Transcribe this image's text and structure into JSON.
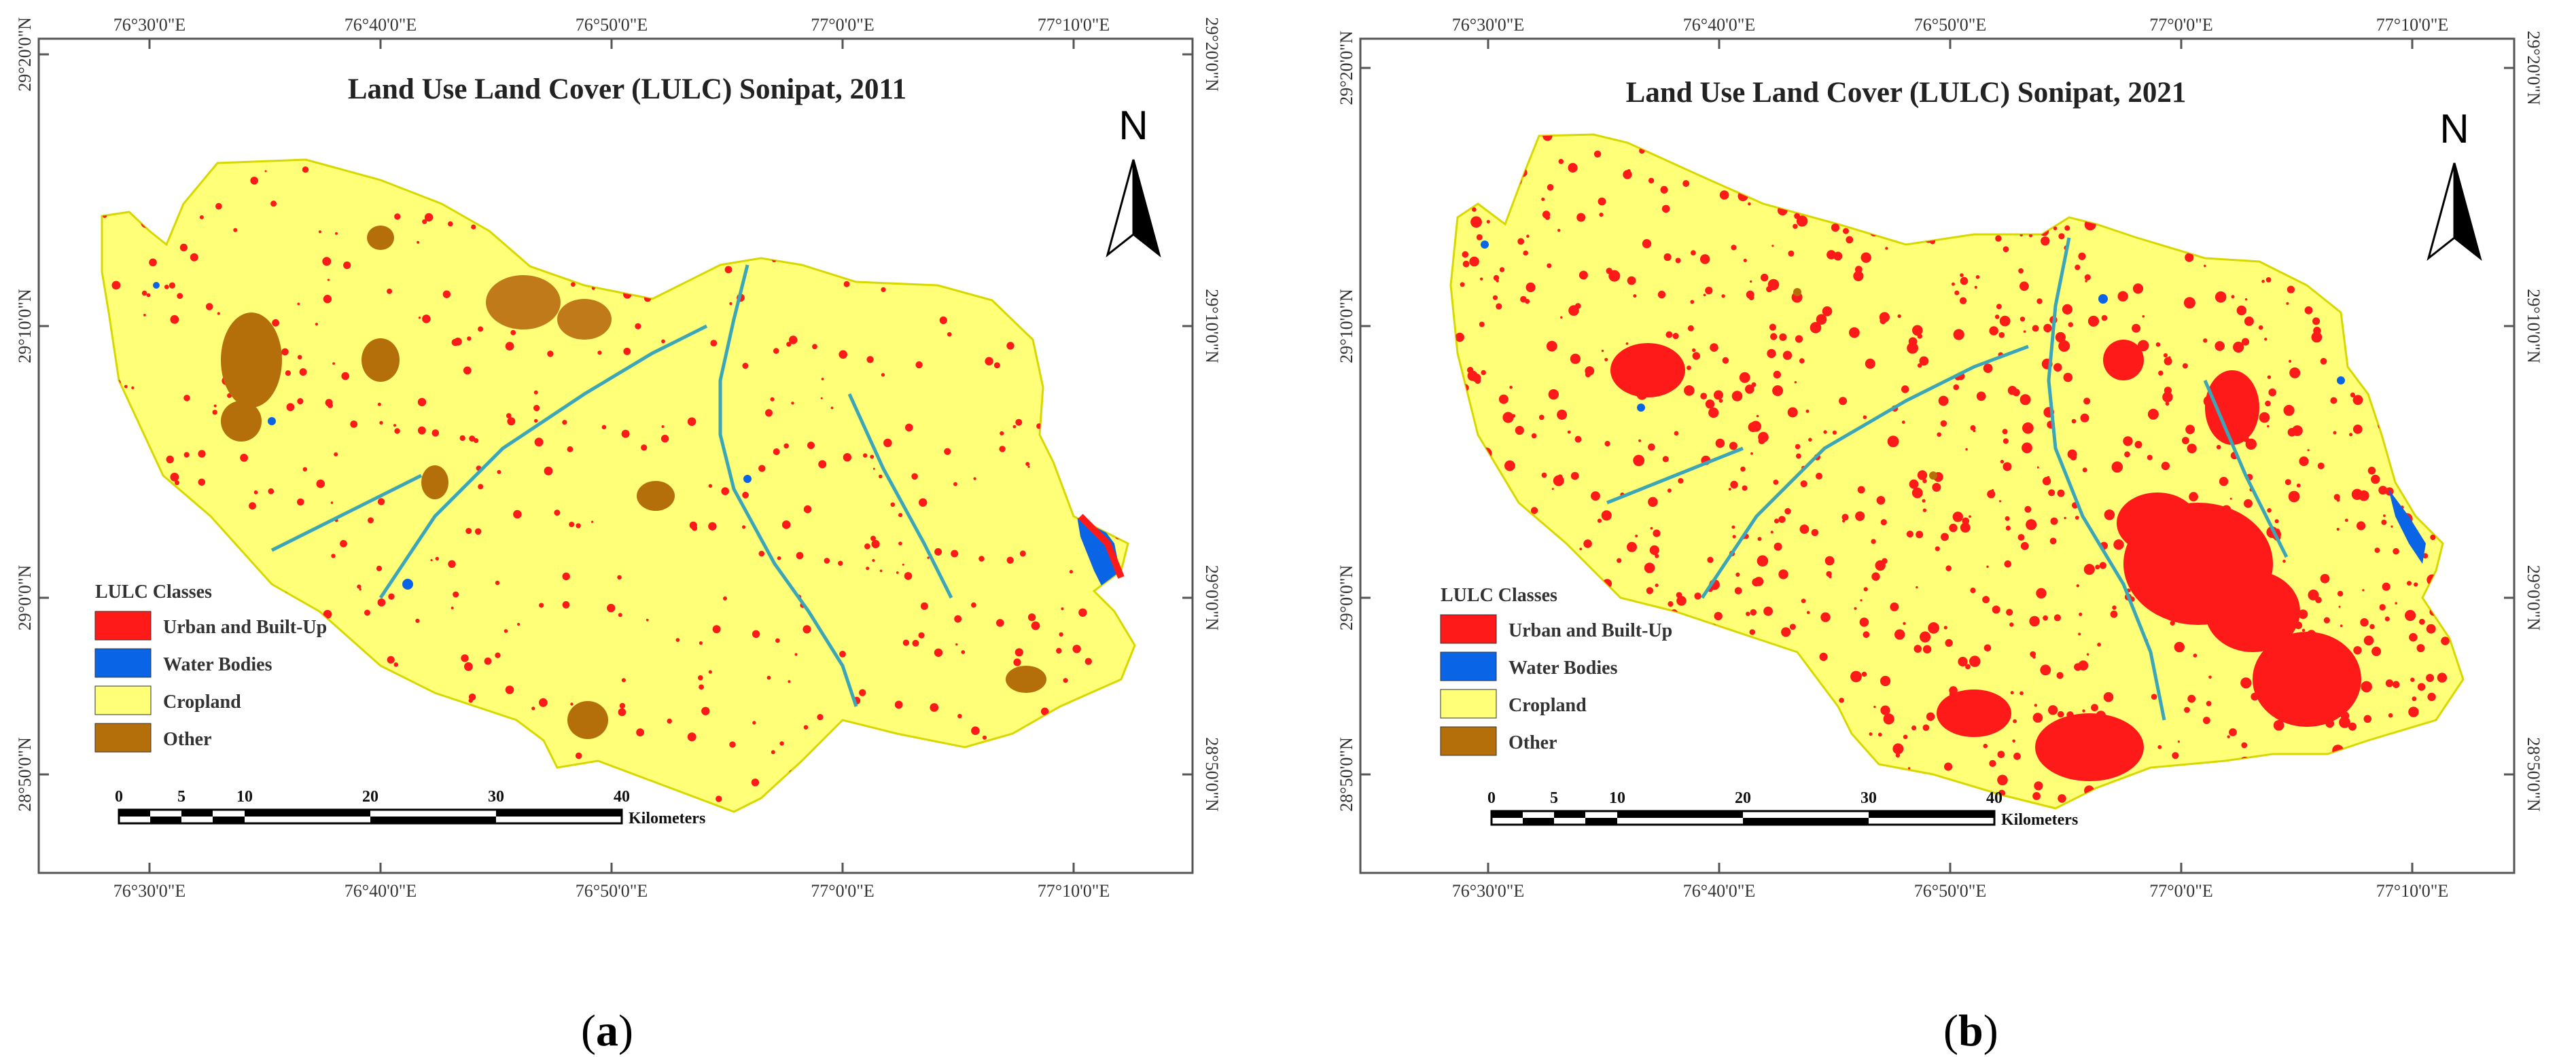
{
  "legend_colors": {
    "urban": "#ff1a1a",
    "water": "#0a64e6",
    "cropland": "#ffff78",
    "other": "#b46e0a",
    "stream": "#3aa6b8",
    "boundary": "#d8d800"
  },
  "panels": [
    {
      "id": "a",
      "title": "Land Use Land Cover (LULC) Sonipat, 2011",
      "caption_letter": "a",
      "top_ticks": [
        "76°30'0\"E",
        "76°40'0\"E",
        "76°50'0\"E",
        "77°0'0\"E",
        "77°10'0\"E"
      ],
      "bottom_ticks": [
        "76°30'0\"E",
        "76°40'0\"E",
        "76°50'0\"E",
        "77°0'0\"E",
        "77°10'0\"E"
      ],
      "left_ticks": [
        "29°20'0\"N",
        "29°10'0\"N",
        "29°0'0\"N",
        "28°50'0\"N"
      ],
      "right_ticks": [
        "29°20'0\"N",
        "29°10'0\"N",
        "29°0'0\"N",
        "28°50'0\"N"
      ],
      "north_label": "N",
      "legend": {
        "title": "LULC Classes",
        "items": [
          {
            "label": "Urban and Built-Up",
            "color": "#ff1a1a"
          },
          {
            "label": "Water Bodies",
            "color": "#0a64e6"
          },
          {
            "label": "Cropland",
            "color": "#ffff78"
          },
          {
            "label": "Other",
            "color": "#b46e0a"
          }
        ]
      },
      "scale_bar": {
        "labels": [
          "0",
          "5",
          "10",
          "20",
          "30",
          "40"
        ],
        "unit": "Kilometers"
      }
    },
    {
      "id": "b",
      "title": "Land Use Land Cover (LULC) Sonipat, 2021",
      "caption_letter": "b",
      "top_ticks": [
        "76°30'0\"E",
        "76°40'0\"E",
        "76°50'0\"E",
        "77°0'0\"E",
        "77°10'0\"E"
      ],
      "bottom_ticks": [
        "76°30'0\"E",
        "76°40'0\"E",
        "76°50'0\"E",
        "77°0'0\"E",
        "77°10'0\"E"
      ],
      "left_ticks": [
        "29°20'0\"N",
        "29°10'0\"N",
        "29°0'0\"N",
        "28°50'0\"N"
      ],
      "right_ticks": [
        "29°20'0\"N",
        "29°10'0\"N",
        "29°0'0\"N",
        "28°50'0\"N"
      ],
      "north_label": "N",
      "legend": {
        "title": "LULC Classes",
        "items": [
          {
            "label": "Urban and Built-Up",
            "color": "#ff1a1a"
          },
          {
            "label": "Water Bodies",
            "color": "#0a64e6"
          },
          {
            "label": "Cropland",
            "color": "#ffff78"
          },
          {
            "label": "Other",
            "color": "#b46e0a"
          }
        ]
      },
      "scale_bar": {
        "labels": [
          "0",
          "5",
          "10",
          "20",
          "30",
          "40"
        ],
        "unit": "Kilometers"
      }
    }
  ]
}
